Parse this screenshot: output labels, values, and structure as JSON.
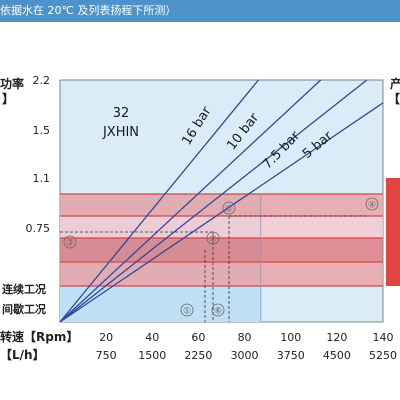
{
  "header": {
    "text": "依据水在 20℃ 及列表扬程下所测）"
  },
  "chart_data": {
    "type": "line",
    "brand_model": "32",
    "brand_name": "JXHIN",
    "y_axis_label_top": "功率",
    "y_axis_label_bottom": "】",
    "right_axis_label_top": "产",
    "right_axis_label_bottom": "【",
    "y_ticks": [
      "2.2",
      "1.5",
      "1.1",
      "0.75"
    ],
    "y_tick_values": [
      2.2,
      1.5,
      1.1,
      0.75
    ],
    "band_labels": [
      "连续工况",
      "间歇工况"
    ],
    "x_axis_label": "转速【Rpm】",
    "x_ticks": [
      "20",
      "40",
      "60",
      "80",
      "100",
      "120",
      "140"
    ],
    "x_tick_values": [
      20,
      40,
      60,
      80,
      100,
      120,
      140
    ],
    "flow_axis_label": "【L/h】",
    "flow_ticks": [
      "750",
      "1500",
      "2250",
      "3000",
      "3750",
      "4500",
      "5250"
    ],
    "xlim": [
      0,
      140
    ],
    "series": [
      {
        "name": "16 bar",
        "end_x": 86,
        "end_y": 2.2
      },
      {
        "name": "10 bar",
        "end_x": 113,
        "end_y": 2.2
      },
      {
        "name": "7.5 bar",
        "end_x": 133,
        "end_y": 2.2
      },
      {
        "name": "5 bar",
        "end_x": 140,
        "end_y": 1.88
      }
    ],
    "markers": [
      "①",
      "②",
      "③",
      "④",
      "⑤",
      "⑥"
    ],
    "colors": {
      "header": "#4e92cc",
      "plot_bg": "#d9ecf7",
      "light_blue_band": "#bfe0f4",
      "upper_blue_band": "#a8d4f0",
      "red_band_dark": "#df6f73",
      "red_band_light": "#eaa0a2",
      "pink_band": "#f4c9d0",
      "line": "#2f4a9e"
    }
  }
}
